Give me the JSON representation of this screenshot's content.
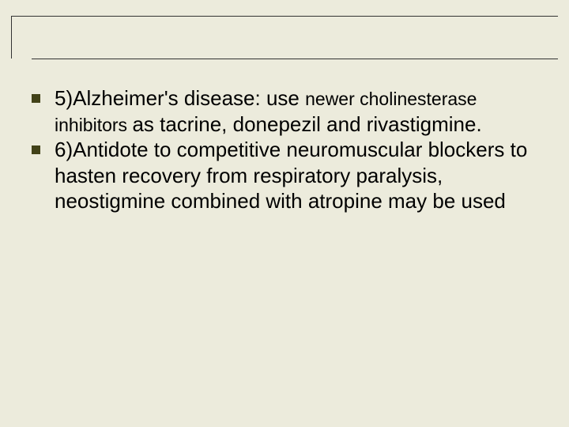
{
  "slide": {
    "background_color": "#ecebdc",
    "bullet_color": "#424218",
    "text_color": "#000000",
    "base_fontsize": 26,
    "small_fontsize": 23,
    "items": [
      {
        "segments": [
          {
            "text": "5)Alzheimer's disease: use ",
            "size": "base"
          },
          {
            "text": "newer cholinesterase inhibitors ",
            "size": "small"
          },
          {
            "text": "as tacrine, donepezil and rivastigmine.",
            "size": "base"
          }
        ]
      },
      {
        "segments": [
          {
            "text": "6)Antidote to competitive neuromuscular blockers to hasten recovery from respiratory paralysis, neostigmine combined with atropine may be used",
            "size": "base"
          }
        ]
      }
    ]
  }
}
